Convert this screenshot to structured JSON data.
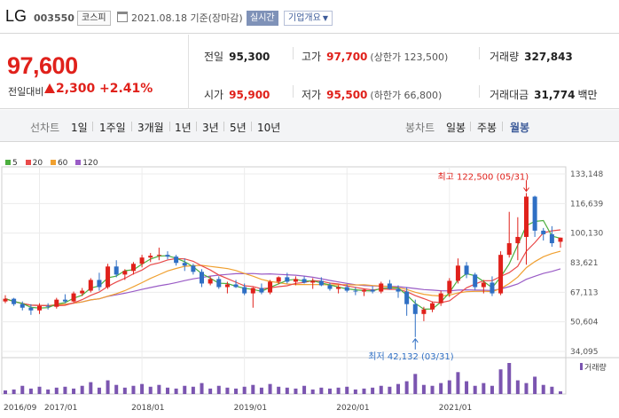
{
  "header": {
    "name": "LG",
    "code": "003550",
    "market": "코스피",
    "date_basis": "2021.08.18 기준(장마감)",
    "realtime_label": "실시간",
    "company_info_label": "기업개요"
  },
  "price": {
    "current": "97,600",
    "change_label": "전일대비",
    "change": "2,300",
    "change_pct": "+2.41%",
    "prev_label": "전일",
    "prev": "95,300",
    "high_label": "고가",
    "high": "97,700",
    "upper_limit": "(상한가 123,500)",
    "volume_label": "거래량",
    "volume": "327,843",
    "open_label": "시가",
    "open": "95,900",
    "low_label": "저가",
    "low": "95,500",
    "lower_limit": "(하한가 66,800)",
    "amount_label": "거래대금",
    "amount": "31,774",
    "amount_unit": "백만"
  },
  "tabs": {
    "line_label": "선차트",
    "line_items": [
      "1일",
      "1주일",
      "3개월",
      "1년",
      "3년",
      "5년",
      "10년"
    ],
    "candle_label": "봉차트",
    "candle_items": [
      "일봉",
      "주봉",
      "월봉"
    ],
    "active_candle": "월봉"
  },
  "colors": {
    "up": "#e0211b",
    "down": "#2f6fc4",
    "ma5": "#4caf3f",
    "ma20": "#e94a4a",
    "ma60": "#f0a030",
    "ma120": "#9a5cc6"
  },
  "chart_data": {
    "type": "candlestick",
    "legend": [
      "5",
      "20",
      "60",
      "120"
    ],
    "y_ticks": [
      133148,
      116639,
      100130,
      83621,
      67113,
      50604,
      34095
    ],
    "ylim": [
      34095,
      133148
    ],
    "x_ticks": [
      "2016/09",
      "2017/01",
      "2018/01",
      "2019/01",
      "2020/01",
      "2021/01"
    ],
    "high_annotation": "최고 122,500 (05/31)",
    "low_annotation": "최저 42,132 (03/31)",
    "volume_label": "거래량",
    "candles": [
      [
        62000,
        65500,
        61000,
        63500
      ],
      [
        63500,
        64000,
        59500,
        60500
      ],
      [
        60500,
        62000,
        57000,
        58500
      ],
      [
        58500,
        60500,
        54500,
        57000
      ],
      [
        57000,
        61000,
        55000,
        59500
      ],
      [
        59500,
        61000,
        57500,
        59000
      ],
      [
        59000,
        64000,
        58000,
        63000
      ],
      [
        63000,
        66000,
        61000,
        62000
      ],
      [
        62000,
        67500,
        61500,
        66500
      ],
      [
        66500,
        69500,
        65000,
        68000
      ],
      [
        68000,
        75000,
        67000,
        74000
      ],
      [
        74000,
        78000,
        68000,
        70000
      ],
      [
        70000,
        83000,
        69000,
        81500
      ],
      [
        81500,
        85000,
        75500,
        77000
      ],
      [
        77000,
        80000,
        74000,
        79000
      ],
      [
        79000,
        84000,
        77000,
        83000
      ],
      [
        83000,
        88000,
        81000,
        86500
      ],
      [
        86500,
        89000,
        84000,
        87500
      ],
      [
        87500,
        92000,
        85000,
        88000
      ],
      [
        88000,
        90000,
        85500,
        87000
      ],
      [
        87000,
        88000,
        82000,
        83500
      ],
      [
        83500,
        86000,
        79000,
        82000
      ],
      [
        82000,
        83000,
        77000,
        78500
      ],
      [
        78500,
        80000,
        70000,
        72000
      ],
      [
        72000,
        76000,
        71000,
        74500
      ],
      [
        74500,
        76000,
        69000,
        70000
      ],
      [
        70000,
        73000,
        66500,
        71500
      ],
      [
        71500,
        74000,
        69500,
        70000
      ],
      [
        70000,
        72000,
        65500,
        66500
      ],
      [
        66500,
        70000,
        58500,
        69500
      ],
      [
        69500,
        72000,
        66000,
        67000
      ],
      [
        67000,
        74000,
        66000,
        73000
      ],
      [
        73000,
        76000,
        71500,
        75500
      ],
      [
        75500,
        78000,
        72000,
        73000
      ],
      [
        73000,
        76000,
        71000,
        74500
      ],
      [
        74500,
        76000,
        72000,
        72500
      ],
      [
        72500,
        75000,
        69000,
        73500
      ],
      [
        73500,
        75500,
        70500,
        71000
      ],
      [
        71000,
        72500,
        68000,
        69000
      ],
      [
        69000,
        71000,
        66500,
        70000
      ],
      [
        70000,
        71500,
        67000,
        68000
      ],
      [
        68000,
        70000,
        65500,
        67500
      ],
      [
        67500,
        69000,
        65000,
        68500
      ],
      [
        68500,
        70500,
        66500,
        67500
      ],
      [
        67500,
        73000,
        66500,
        72000
      ],
      [
        72000,
        74000,
        68500,
        69000
      ],
      [
        69000,
        71000,
        64000,
        67500
      ],
      [
        67500,
        70000,
        54000,
        60500
      ],
      [
        60500,
        63000,
        42132,
        55000
      ],
      [
        55000,
        59000,
        51000,
        57500
      ],
      [
        57500,
        62000,
        56000,
        61000
      ],
      [
        61000,
        68000,
        59500,
        66500
      ],
      [
        66500,
        75000,
        64500,
        73500
      ],
      [
        73500,
        86000,
        72000,
        82000
      ],
      [
        82000,
        84000,
        75000,
        77000
      ],
      [
        77000,
        78000,
        68500,
        70000
      ],
      [
        70000,
        74000,
        66500,
        72500
      ],
      [
        72500,
        76000,
        65000,
        66500
      ],
      [
        66500,
        90000,
        65500,
        88000
      ],
      [
        88000,
        112000,
        86500,
        94500
      ],
      [
        94500,
        109000,
        85000,
        98000
      ],
      [
        98000,
        122500,
        82500,
        120500
      ],
      [
        120500,
        121000,
        98000,
        101500
      ],
      [
        101500,
        103000,
        96000,
        99500
      ],
      [
        99500,
        104000,
        92500,
        94500
      ],
      [
        95300,
        97700,
        92000,
        97600
      ]
    ],
    "volumes": [
      4,
      5,
      9,
      6,
      8,
      5,
      7,
      8,
      6,
      9,
      13,
      7,
      15,
      10,
      7,
      9,
      11,
      8,
      10,
      7,
      6,
      9,
      8,
      12,
      6,
      9,
      7,
      6,
      8,
      10,
      7,
      11,
      8,
      7,
      6,
      9,
      5,
      7,
      6,
      7,
      8,
      5,
      6,
      7,
      9,
      8,
      11,
      14,
      22,
      10,
      9,
      12,
      15,
      24,
      14,
      9,
      12,
      9,
      27,
      34,
      15,
      12,
      19,
      10,
      8,
      3
    ]
  }
}
